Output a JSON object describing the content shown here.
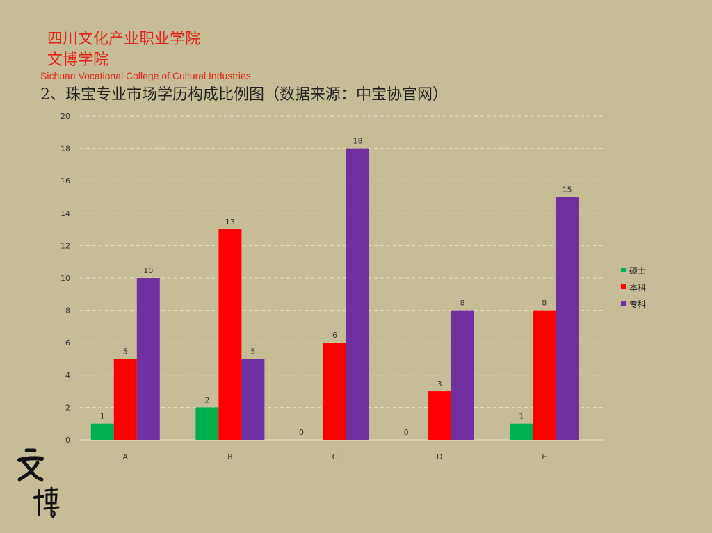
{
  "header": {
    "college_cn": "四川文化产业职业学院",
    "school_cn": "文博学院",
    "college_en": "Sichuan Vocational College of Cultural Industries"
  },
  "slide": {
    "title": "2、珠宝专业市场学历构成比例图（数据来源：中宝协官网）"
  },
  "logo": {
    "text": "文博",
    "color": "#111111"
  },
  "colors": {
    "background": "#c6bd97",
    "gridline": "#e8e3cf",
    "axis_text": "#333333",
    "series": [
      "#00b050",
      "#ff0000",
      "#7030a0"
    ]
  },
  "chart_data": {
    "type": "bar",
    "categories": [
      "A",
      "B",
      "C",
      "D",
      "E"
    ],
    "series": [
      {
        "name": "硕士",
        "values": [
          1,
          2,
          0,
          0,
          1
        ]
      },
      {
        "name": "本科",
        "values": [
          5,
          13,
          6,
          3,
          8
        ]
      },
      {
        "name": "专科",
        "values": [
          10,
          5,
          18,
          8,
          15
        ]
      }
    ],
    "ylim": [
      0,
      20
    ],
    "yticks": [
      0,
      2,
      4,
      6,
      8,
      10,
      12,
      14,
      16,
      18,
      20
    ],
    "grid": true,
    "legend": "right"
  }
}
